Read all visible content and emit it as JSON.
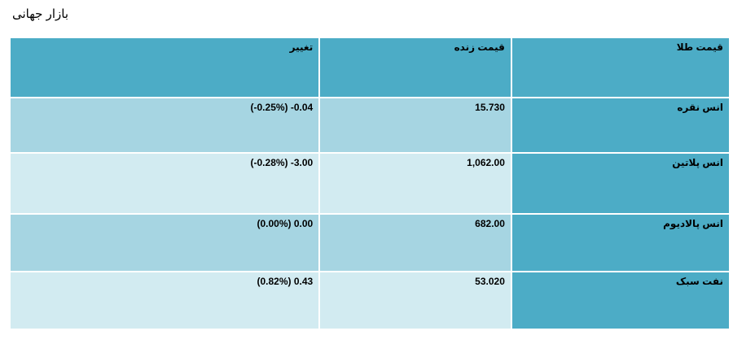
{
  "page": {
    "title": "بازار جهانی"
  },
  "table": {
    "headers": {
      "name": "قیمت طلا",
      "price": "قیمت زنده",
      "change": "تغییر"
    },
    "rows": [
      {
        "name": "انس نقره",
        "price": "15.730",
        "change": "(-0.25%) -0.04"
      },
      {
        "name": "انس پلاتین",
        "price": "1,062.00",
        "change": "(-0.28%) -3.00"
      },
      {
        "name": "انس پالادیوم",
        "price": "682.00",
        "change": "(0.00%) 0.00"
      },
      {
        "name": "نفت سبک",
        "price": "53.020",
        "change": "(0.82%) 0.43"
      }
    ]
  },
  "colors": {
    "header_bg": "#4cacc6",
    "name_col_bg": "#4cacc6",
    "row_dark_bg": "#a6d5e2",
    "row_light_bg": "#d2ebf1"
  }
}
